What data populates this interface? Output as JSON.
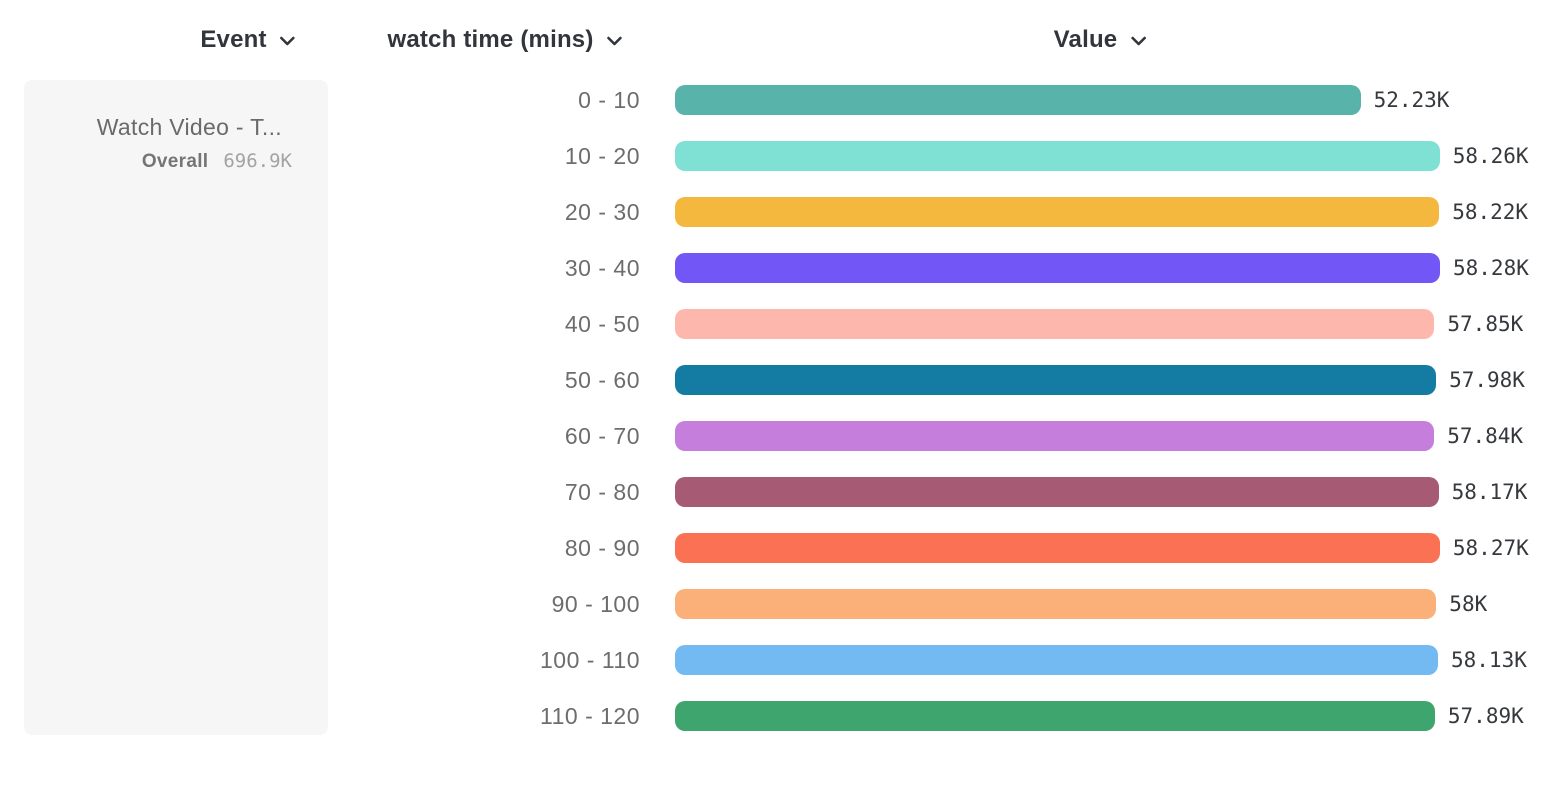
{
  "columns": {
    "event": "Event",
    "breakdown": "watch time (mins)",
    "value": "Value"
  },
  "event_card": {
    "title": "Watch Video - T...",
    "overall_label": "Overall",
    "overall_value": "696.9K"
  },
  "chart_data": {
    "type": "bar",
    "orientation": "horizontal",
    "title": "",
    "xlabel": "Value",
    "ylabel": "watch time (mins)",
    "categories": [
      "0 - 10",
      "10 - 20",
      "20 - 30",
      "30 - 40",
      "40 - 50",
      "50 - 60",
      "60 - 70",
      "70 - 80",
      "80 - 90",
      "90 - 100",
      "100 - 110",
      "110 - 120"
    ],
    "values": [
      52230,
      58260,
      58220,
      58280,
      57850,
      57980,
      57840,
      58170,
      58270,
      58000,
      58130,
      57890
    ],
    "value_labels": [
      "52.23K",
      "58.26K",
      "58.22K",
      "58.28K",
      "57.85K",
      "57.98K",
      "57.84K",
      "58.17K",
      "58.27K",
      "58K",
      "58.13K",
      "57.89K"
    ],
    "colors": [
      "#58b3ab",
      "#7fe0d4",
      "#f5b83e",
      "#7256f6",
      "#fdb7ad",
      "#147ca2",
      "#c57edb",
      "#a65a73",
      "#fb7153",
      "#fab078",
      "#72baf1",
      "#3fa56e"
    ],
    "overall_total_label": "696.9K",
    "xlim": [
      0,
      58280
    ],
    "grid": false,
    "legend": false
  }
}
